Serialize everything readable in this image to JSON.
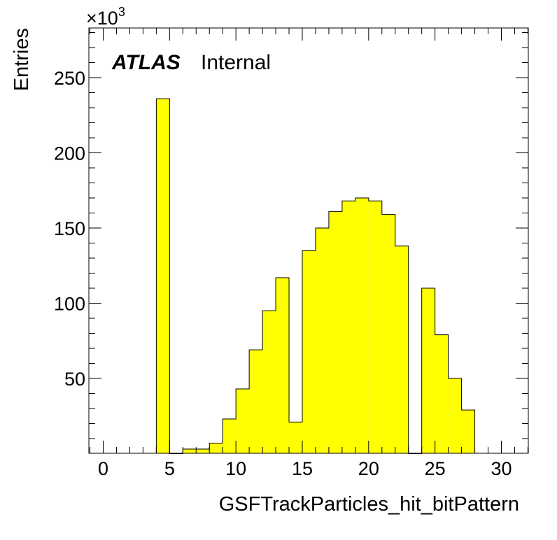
{
  "chart_data": {
    "type": "histogram",
    "xlabel": "GSFTrackParticles_hit_bitPattern",
    "ylabel": "Entries",
    "y_multiplier_label": "×10",
    "y_multiplier_exponent": "3",
    "label_brand": "ATLAS",
    "label_status": "Internal",
    "xlim": [
      -1,
      32
    ],
    "ylim": [
      0,
      282
    ],
    "bin_width": 1,
    "x_ticks": [
      0,
      5,
      10,
      15,
      20,
      25,
      30
    ],
    "x_tick_labels": [
      "0",
      "5",
      "10",
      "15",
      "20",
      "25",
      "30"
    ],
    "y_ticks": [
      50,
      100,
      150,
      200,
      250
    ],
    "y_tick_labels": [
      "50",
      "100",
      "150",
      "200",
      "250"
    ],
    "bins": [
      {
        "low": 4,
        "value": 236
      },
      {
        "low": 5,
        "value": 0
      },
      {
        "low": 6,
        "value": 3
      },
      {
        "low": 7,
        "value": 3
      },
      {
        "low": 8,
        "value": 7
      },
      {
        "low": 9,
        "value": 23
      },
      {
        "low": 10,
        "value": 43
      },
      {
        "low": 11,
        "value": 69
      },
      {
        "low": 12,
        "value": 95
      },
      {
        "low": 13,
        "value": 117
      },
      {
        "low": 14,
        "value": 21
      },
      {
        "low": 15,
        "value": 135
      },
      {
        "low": 16,
        "value": 150
      },
      {
        "low": 17,
        "value": 161
      },
      {
        "low": 18,
        "value": 168
      },
      {
        "low": 19,
        "value": 170
      },
      {
        "low": 20,
        "value": 168
      },
      {
        "low": 21,
        "value": 159
      },
      {
        "low": 22,
        "value": 138
      },
      {
        "low": 23,
        "value": 0
      },
      {
        "low": 24,
        "value": 110
      },
      {
        "low": 25,
        "value": 79
      },
      {
        "low": 26,
        "value": 50
      },
      {
        "low": 27,
        "value": 29
      }
    ],
    "fill_color": "#ffff00",
    "line_color": "#000000"
  }
}
